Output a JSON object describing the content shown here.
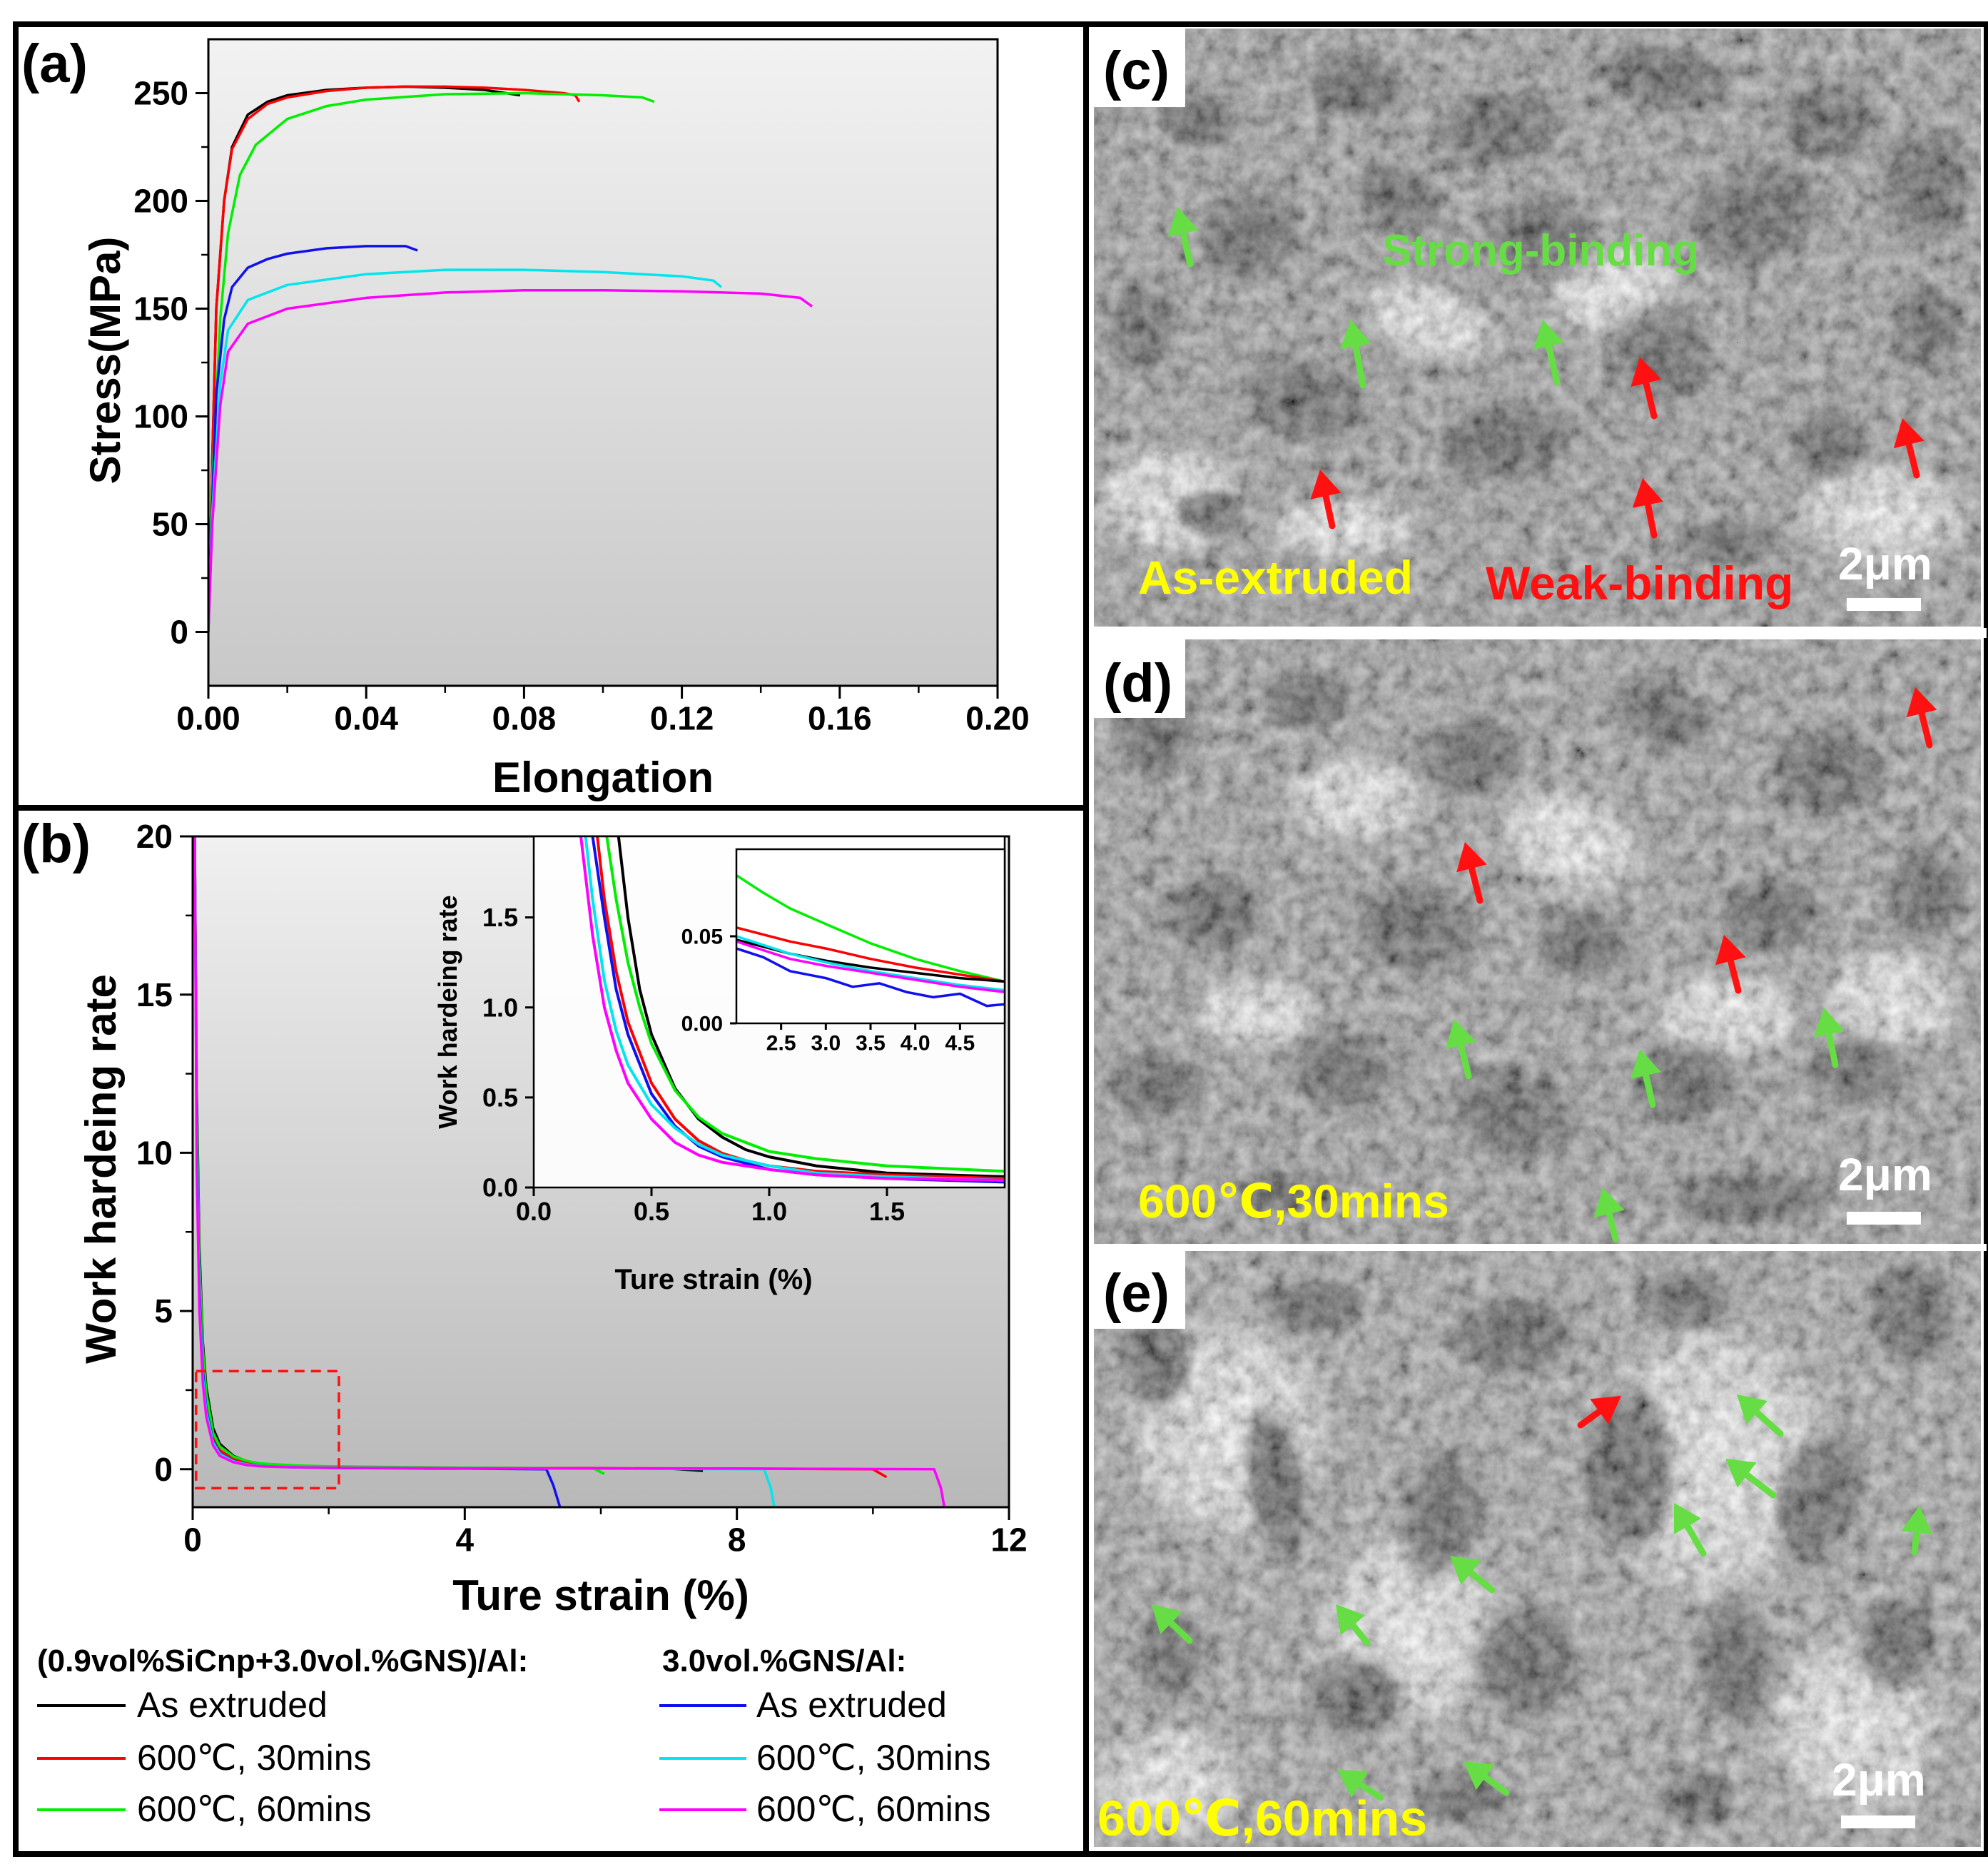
{
  "panels": {
    "a": "(a)",
    "b": "(b)",
    "c": "(c)",
    "d": "(d)",
    "e": "(e)"
  },
  "chart_data": [
    {
      "panel": "(a)",
      "type": "line",
      "xlabel": "Elongation",
      "ylabel": "Stress(MPa)",
      "xlim": [
        0,
        0.2
      ],
      "ylim": [
        -25,
        275
      ],
      "xticks": [
        0.0,
        0.04,
        0.08,
        0.12,
        0.16,
        0.2
      ],
      "xtick_labels": [
        "0.00",
        "0.04",
        "0.08",
        "0.12",
        "0.16",
        "0.20"
      ],
      "yticks": [
        0,
        50,
        100,
        150,
        200,
        250
      ],
      "ytick_labels": [
        "0",
        "50",
        "100",
        "150",
        "200",
        "250"
      ],
      "series": [
        {
          "color": "#000000",
          "x": [
            0,
            0.001,
            0.002,
            0.004,
            0.006,
            0.01,
            0.015,
            0.02,
            0.03,
            0.04,
            0.05,
            0.06,
            0.07,
            0.079
          ],
          "y": [
            0,
            80,
            150,
            200,
            225,
            240,
            246,
            249,
            251.5,
            252.5,
            253,
            252.5,
            251.5,
            249
          ]
        },
        {
          "color": "#ff0000",
          "x": [
            0,
            0.001,
            0.002,
            0.004,
            0.006,
            0.01,
            0.015,
            0.02,
            0.03,
            0.04,
            0.05,
            0.06,
            0.07,
            0.08,
            0.09,
            0.093,
            0.094
          ],
          "y": [
            0,
            80,
            150,
            200,
            224,
            238,
            245,
            248,
            251,
            252.5,
            253,
            253,
            252.5,
            251.5,
            250,
            249,
            246
          ]
        },
        {
          "color": "#00ee00",
          "x": [
            0,
            0.001,
            0.003,
            0.005,
            0.008,
            0.012,
            0.02,
            0.03,
            0.04,
            0.06,
            0.08,
            0.1,
            0.11,
            0.113
          ],
          "y": [
            0,
            70,
            145,
            185,
            212,
            226,
            238,
            244,
            247,
            249.5,
            250,
            249,
            248,
            246
          ]
        },
        {
          "color": "#1010ee",
          "x": [
            0,
            0.001,
            0.002,
            0.004,
            0.006,
            0.01,
            0.015,
            0.02,
            0.03,
            0.04,
            0.05,
            0.053
          ],
          "y": [
            0,
            60,
            110,
            145,
            160,
            169,
            173,
            175.5,
            178,
            179,
            179,
            177
          ]
        },
        {
          "color": "#00e5ee",
          "x": [
            0,
            0.001,
            0.003,
            0.005,
            0.01,
            0.02,
            0.04,
            0.06,
            0.08,
            0.1,
            0.12,
            0.128,
            0.13
          ],
          "y": [
            0,
            55,
            115,
            140,
            154,
            161,
            166,
            168,
            168,
            167,
            165,
            163,
            160
          ]
        },
        {
          "color": "#ff00ff",
          "x": [
            0,
            0.001,
            0.003,
            0.005,
            0.01,
            0.02,
            0.04,
            0.06,
            0.08,
            0.1,
            0.12,
            0.14,
            0.15,
            0.153
          ],
          "y": [
            0,
            50,
            105,
            130,
            143,
            150,
            155,
            157.5,
            158.5,
            158.5,
            158,
            157,
            155,
            151
          ]
        }
      ]
    },
    {
      "panel": "(b)",
      "type": "line",
      "xlabel": "Ture strain (%)",
      "ylabel": "Work hardeing rate",
      "xlim": [
        0,
        12
      ],
      "ylim": [
        -1.2,
        20
      ],
      "xticks": [
        0,
        4,
        8,
        12
      ],
      "xtick_labels": [
        "0",
        "4",
        "8",
        "12"
      ],
      "yticks": [
        0,
        5,
        10,
        15,
        20
      ],
      "ytick_labels": [
        "0",
        "5",
        "10",
        "15",
        "20"
      ],
      "series": [
        {
          "color": "#000000",
          "x": [
            0.03,
            0.06,
            0.1,
            0.15,
            0.2,
            0.3,
            0.4,
            0.6,
            0.8,
            1.0,
            1.5,
            2.0,
            4.0,
            7.0,
            7.5
          ],
          "y": [
            20,
            12,
            7,
            4,
            2.6,
            1.3,
            0.8,
            0.42,
            0.25,
            0.17,
            0.1,
            0.07,
            0.04,
            0.02,
            -0.05
          ]
        },
        {
          "color": "#ff0000",
          "x": [
            0.03,
            0.06,
            0.1,
            0.15,
            0.2,
            0.3,
            0.4,
            0.6,
            0.8,
            1.0,
            1.5,
            2.0,
            4.0,
            8.0,
            10.0,
            10.2
          ],
          "y": [
            20,
            11,
            6,
            3.4,
            2.1,
            1.0,
            0.6,
            0.32,
            0.2,
            0.14,
            0.08,
            0.06,
            0.04,
            0.02,
            0.0,
            -0.25
          ]
        },
        {
          "color": "#00ee00",
          "x": [
            0.03,
            0.06,
            0.1,
            0.15,
            0.2,
            0.3,
            0.4,
            0.6,
            0.8,
            1.0,
            1.5,
            2.0,
            4.0,
            5.9,
            6.05
          ],
          "y": [
            20,
            11.5,
            6.6,
            3.8,
            2.4,
            1.15,
            0.72,
            0.4,
            0.26,
            0.18,
            0.12,
            0.09,
            0.05,
            0.02,
            -0.15
          ]
        },
        {
          "color": "#1010ee",
          "x": [
            0.03,
            0.06,
            0.1,
            0.15,
            0.2,
            0.3,
            0.4,
            0.6,
            0.8,
            1.0,
            1.5,
            2.0,
            4.0,
            5.2,
            5.3,
            5.4
          ],
          "y": [
            20,
            10.5,
            5.6,
            3.1,
            1.9,
            0.9,
            0.5,
            0.26,
            0.15,
            0.1,
            0.06,
            0.04,
            0.02,
            0.0,
            -0.5,
            -1.2
          ]
        },
        {
          "color": "#00e5ee",
          "x": [
            0.03,
            0.06,
            0.1,
            0.15,
            0.2,
            0.3,
            0.4,
            0.6,
            0.8,
            1.0,
            1.5,
            2.0,
            4.0,
            8.4,
            8.5,
            8.55
          ],
          "y": [
            20,
            10,
            5.3,
            2.9,
            1.8,
            0.85,
            0.48,
            0.25,
            0.15,
            0.1,
            0.06,
            0.05,
            0.03,
            0.0,
            -0.6,
            -1.2
          ]
        },
        {
          "color": "#ff00ff",
          "x": [
            0.03,
            0.06,
            0.1,
            0.15,
            0.2,
            0.3,
            0.4,
            0.6,
            0.8,
            1.0,
            1.5,
            2.0,
            4.0,
            8.0,
            10.9,
            11.0,
            11.05
          ],
          "y": [
            20,
            9.5,
            5.0,
            2.7,
            1.65,
            0.75,
            0.42,
            0.22,
            0.13,
            0.09,
            0.06,
            0.05,
            0.03,
            0.02,
            0.0,
            -0.6,
            -1.2
          ]
        }
      ],
      "highlight_box": {
        "x": [
          0.05,
          2.15
        ],
        "y": [
          -0.6,
          3.1
        ]
      }
    },
    {
      "panel": "(b) inset",
      "type": "line",
      "xlabel": "Ture strain(%)",
      "ylabel": "Work hardeing rate",
      "xlim": [
        0,
        2.0
      ],
      "ylim": [
        0,
        1.95
      ],
      "xticks": [
        0.0,
        0.5,
        1.0,
        1.5
      ],
      "xtick_labels": [
        "0.0",
        "0.5",
        "1.0",
        "1.5"
      ],
      "yticks": [
        0.0,
        0.5,
        1.0,
        1.5
      ],
      "ytick_labels": [
        "0.0",
        "0.5",
        "1.0",
        "1.5"
      ],
      "series": [
        {
          "color": "#000000",
          "x": [
            0.36,
            0.4,
            0.45,
            0.5,
            0.6,
            0.7,
            0.8,
            0.9,
            1.0,
            1.2,
            1.5,
            2.0
          ],
          "y": [
            1.95,
            1.5,
            1.1,
            0.85,
            0.55,
            0.38,
            0.28,
            0.21,
            0.17,
            0.12,
            0.08,
            0.06
          ]
        },
        {
          "color": "#ff0000",
          "x": [
            0.27,
            0.3,
            0.35,
            0.4,
            0.5,
            0.6,
            0.7,
            0.8,
            0.9,
            1.0,
            1.2,
            1.5,
            2.0
          ],
          "y": [
            1.95,
            1.6,
            1.2,
            0.92,
            0.58,
            0.38,
            0.26,
            0.19,
            0.15,
            0.12,
            0.09,
            0.07,
            0.05
          ]
        },
        {
          "color": "#00ee00",
          "x": [
            0.31,
            0.35,
            0.4,
            0.45,
            0.5,
            0.6,
            0.7,
            0.8,
            1.0,
            1.2,
            1.5,
            2.0
          ],
          "y": [
            1.95,
            1.6,
            1.25,
            1.0,
            0.8,
            0.54,
            0.39,
            0.3,
            0.2,
            0.16,
            0.12,
            0.09
          ]
        },
        {
          "color": "#1010ee",
          "x": [
            0.25,
            0.3,
            0.35,
            0.4,
            0.5,
            0.6,
            0.7,
            0.8,
            1.0,
            1.2,
            1.5,
            2.0
          ],
          "y": [
            1.95,
            1.5,
            1.1,
            0.85,
            0.52,
            0.34,
            0.23,
            0.17,
            0.1,
            0.07,
            0.05,
            0.03
          ]
        },
        {
          "color": "#00e5ee",
          "x": [
            0.22,
            0.25,
            0.3,
            0.35,
            0.4,
            0.5,
            0.6,
            0.7,
            0.8,
            1.0,
            1.2,
            1.5,
            2.0
          ],
          "y": [
            1.95,
            1.6,
            1.15,
            0.87,
            0.68,
            0.46,
            0.33,
            0.24,
            0.18,
            0.12,
            0.08,
            0.06,
            0.04
          ]
        },
        {
          "color": "#ff00ff",
          "x": [
            0.2,
            0.25,
            0.3,
            0.35,
            0.4,
            0.5,
            0.6,
            0.7,
            0.8,
            1.0,
            1.2,
            1.5,
            2.0
          ],
          "y": [
            1.95,
            1.4,
            1.0,
            0.76,
            0.58,
            0.38,
            0.25,
            0.18,
            0.14,
            0.1,
            0.07,
            0.05,
            0.04
          ]
        }
      ]
    },
    {
      "panel": "(b) inset zoom",
      "type": "line",
      "xlim": [
        2.0,
        5.0
      ],
      "ylim": [
        0,
        0.1
      ],
      "xticks": [
        2.5,
        3.0,
        3.5,
        4.0,
        4.5
      ],
      "xtick_labels": [
        "2.5",
        "3.0",
        "3.5",
        "4.0",
        "4.5"
      ],
      "yticks": [
        0.0,
        0.05
      ],
      "ytick_labels": [
        "0.00",
        "0.05"
      ],
      "series": [
        {
          "color": "#00ee00",
          "x": [
            2.0,
            2.3,
            2.6,
            3.0,
            3.5,
            4.0,
            4.5,
            5.0
          ],
          "y": [
            0.085,
            0.075,
            0.066,
            0.057,
            0.046,
            0.037,
            0.03,
            0.024
          ]
        },
        {
          "color": "#ff0000",
          "x": [
            2.0,
            2.3,
            2.6,
            3.0,
            3.5,
            4.0,
            4.5,
            5.0
          ],
          "y": [
            0.055,
            0.051,
            0.047,
            0.043,
            0.037,
            0.032,
            0.028,
            0.024
          ]
        },
        {
          "color": "#000000",
          "x": [
            2.0,
            2.3,
            2.6,
            3.0,
            3.5,
            4.0,
            4.5,
            5.0
          ],
          "y": [
            0.048,
            0.044,
            0.04,
            0.036,
            0.032,
            0.029,
            0.026,
            0.024
          ]
        },
        {
          "color": "#00e5ee",
          "x": [
            2.0,
            2.3,
            2.6,
            3.0,
            3.5,
            4.0,
            4.5,
            5.0
          ],
          "y": [
            0.05,
            0.045,
            0.04,
            0.035,
            0.03,
            0.026,
            0.022,
            0.019
          ]
        },
        {
          "color": "#ff00ff",
          "x": [
            2.0,
            2.3,
            2.6,
            3.0,
            3.5,
            4.0,
            4.5,
            5.0
          ],
          "y": [
            0.047,
            0.042,
            0.037,
            0.033,
            0.029,
            0.025,
            0.021,
            0.018
          ]
        },
        {
          "color": "#1010ee",
          "x": [
            2.0,
            2.3,
            2.6,
            3.0,
            3.3,
            3.6,
            3.9,
            4.2,
            4.5,
            4.8,
            5.0
          ],
          "y": [
            0.043,
            0.038,
            0.03,
            0.026,
            0.021,
            0.023,
            0.018,
            0.015,
            0.017,
            0.01,
            0.011
          ]
        }
      ]
    }
  ],
  "legend": {
    "group1_title": "(0.9vol%SiCnp+3.0vol.%GNS)/Al:",
    "group2_title": "3.0vol.%GNS/Al:",
    "group1": [
      {
        "label": "As extruded",
        "color": "#000000"
      },
      {
        "label": "600℃, 30mins",
        "color": "#ff0000"
      },
      {
        "label": "600℃, 60mins",
        "color": "#00ee00"
      }
    ],
    "group2": [
      {
        "label": "As extruded",
        "color": "#1010ee"
      },
      {
        "label": "600℃, 30mins",
        "color": "#00e5ee"
      },
      {
        "label": "600℃, 60mins",
        "color": "#ff00ff"
      }
    ]
  },
  "sem": {
    "c": {
      "label": "As-extruded",
      "label_color": "#ffff00",
      "strong": "Strong-binding",
      "strong_color": "#66dd44",
      "weak": "Weak-binding",
      "weak_color": "#ff1111",
      "scale": "2μm"
    },
    "d": {
      "label": "600℃,30mins",
      "label_color": "#ffff00",
      "scale": "2μm"
    },
    "e": {
      "label": "600℃,60mins",
      "label_color": "#ffff00",
      "scale": "2μm"
    }
  }
}
